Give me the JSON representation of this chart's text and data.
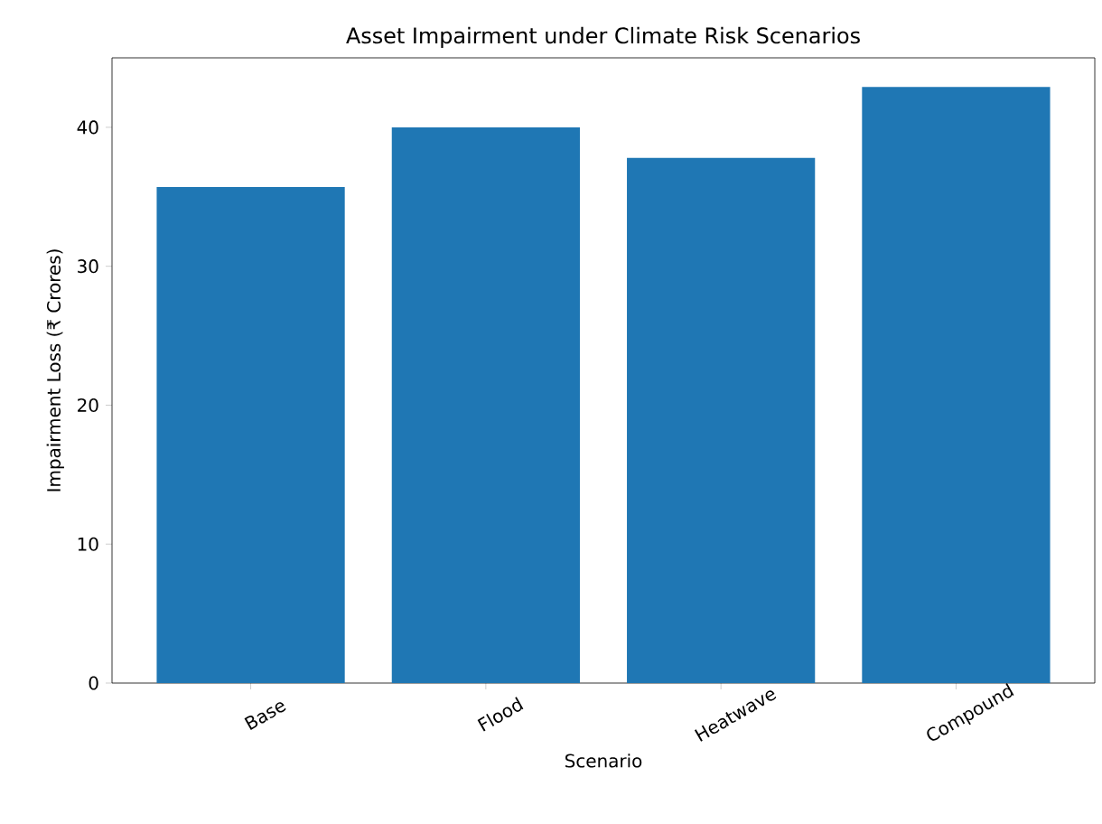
{
  "chart_data": {
    "type": "bar",
    "title": "Asset Impairment under Climate Risk Scenarios",
    "xlabel": "Scenario",
    "ylabel": "Impairment Loss (₹ Crores)",
    "categories": [
      "Base",
      "Flood",
      "Heatwave",
      "Compound"
    ],
    "values": [
      35.7,
      40.0,
      37.8,
      42.9
    ],
    "color": "#1f77b4",
    "ylim": [
      0,
      45
    ],
    "yticks": [
      0,
      10,
      20,
      30,
      40
    ],
    "grid": false
  }
}
